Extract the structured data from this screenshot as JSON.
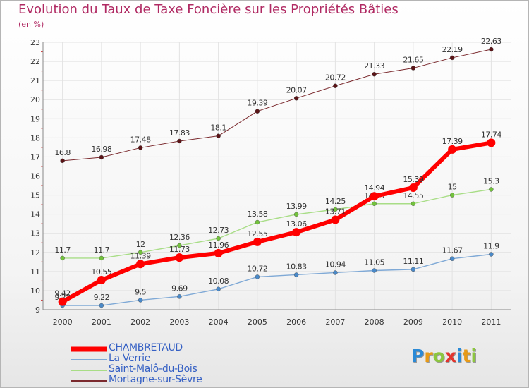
{
  "title": "Evolution du Taux de Taxe Foncière sur les Propriétés Bâties",
  "subtitle": "(en %)",
  "logo_letters": [
    {
      "ch": "P",
      "color": "#2b8ad6"
    },
    {
      "ch": "r",
      "color": "#e89a16"
    },
    {
      "ch": "o",
      "color": "#8cc63f"
    },
    {
      "ch": "x",
      "color": "#e2342e"
    },
    {
      "ch": "i",
      "color": "#2b8ad6"
    },
    {
      "ch": "t",
      "color": "#e89a16"
    },
    {
      "ch": "i",
      "color": "#8cc63f"
    }
  ],
  "chart_data": {
    "type": "line",
    "title": "Evolution du Taux de Taxe Foncière sur les Propriétés Bâties",
    "ylabel": "(en %)",
    "xlabel": "",
    "x": [
      2000,
      2001,
      2002,
      2003,
      2004,
      2005,
      2006,
      2007,
      2008,
      2009,
      2010,
      2011
    ],
    "ylim": [
      9,
      23
    ],
    "yticks": [
      9,
      10,
      11,
      12,
      13,
      14,
      15,
      16,
      17,
      18,
      19,
      20,
      21,
      22,
      23
    ],
    "grid": true,
    "legend_position": "bottom-left",
    "series": [
      {
        "name": "Mortagne-sur-Sèvre",
        "color": "#7b2a2e",
        "marker": "#5a1417",
        "width": 1,
        "values": [
          16.8,
          16.98,
          17.48,
          17.83,
          18.1,
          19.39,
          20.07,
          20.72,
          21.33,
          21.65,
          22.19,
          22.63
        ],
        "labels": [
          "16.8",
          "16.98",
          "17.48",
          "17.83",
          "18.1",
          "19.39",
          "20.07",
          "20.72",
          "21.33",
          "21.65",
          "22.19",
          "22.63"
        ]
      },
      {
        "name": "Saint-Malô-du-Bois",
        "color": "#a8dd86",
        "marker": "#72c23c",
        "width": 1.4,
        "values": [
          11.7,
          11.7,
          12,
          12.36,
          12.73,
          13.58,
          13.99,
          14.25,
          14.55,
          14.55,
          15,
          15.3
        ],
        "labels": [
          "11.7",
          "11.7",
          "12",
          "12.36",
          "12.73",
          "13.58",
          "13.99",
          "14.25",
          "14.55",
          "14.55",
          "15",
          "15.3"
        ]
      },
      {
        "name": "La Verrie",
        "color": "#7fa9d6",
        "marker": "#4a89c8",
        "width": 1.4,
        "values": [
          9.22,
          9.22,
          9.5,
          9.69,
          10.08,
          10.72,
          10.83,
          10.94,
          11.05,
          11.11,
          11.67,
          11.9
        ],
        "labels": [
          "9.22",
          "9.22",
          "9.5",
          "9.69",
          "10.08",
          "10.72",
          "10.83",
          "10.94",
          "11.05",
          "11.11",
          "11.67",
          "11.9"
        ]
      },
      {
        "name": "CHAMBRETAUD",
        "color": "#ff0000",
        "marker": "#ff0000",
        "width": 6,
        "values": [
          9.42,
          10.55,
          11.39,
          11.73,
          11.96,
          12.55,
          13.06,
          13.71,
          14.94,
          15.39,
          17.39,
          17.74
        ],
        "labels": [
          "9.42",
          "10.55",
          "11.39",
          "11.73",
          "11.96",
          "12.55",
          "13.06",
          "13.71",
          "14.94",
          "15.39",
          "17.39",
          "17.74"
        ]
      }
    ]
  },
  "legend": [
    {
      "name": "CHAMBRETAUD",
      "color": "#ff0000",
      "thickness": 7
    },
    {
      "name": "La Verrie",
      "color": "#7fa9d6",
      "thickness": 2
    },
    {
      "name": "Saint-Malô-du-Bois",
      "color": "#a8dd86",
      "thickness": 2
    },
    {
      "name": "Mortagne-sur-Sèvre",
      "color": "#7b2a2e",
      "thickness": 2
    }
  ]
}
